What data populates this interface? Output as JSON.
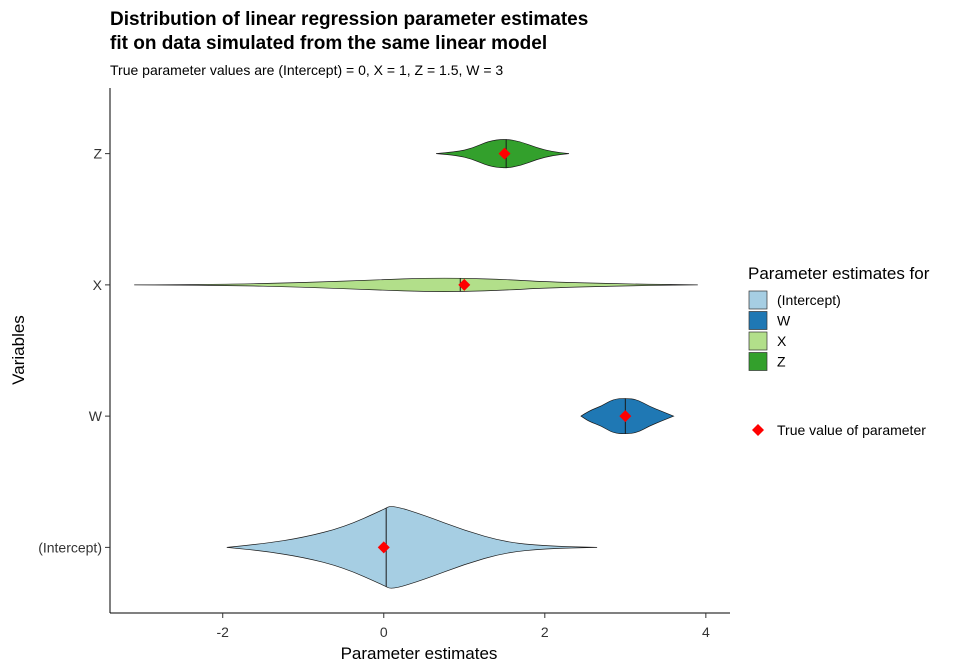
{
  "chart_data": {
    "type": "violin",
    "orientation": "horizontal",
    "title_line1": "Distribution of linear regression parameter estimates",
    "title_line2": "fit on data simulated from the same linear model",
    "subtitle": "True parameter values are (Intercept) = 0, X = 1, Z = 1.5, W = 3",
    "xlabel": "Parameter estimates",
    "ylabel": "Variables",
    "xlim": [
      -3.4,
      4.3
    ],
    "x_ticks": [
      -2,
      0,
      2,
      4
    ],
    "categories": [
      "(Intercept)",
      "W",
      "X",
      "Z"
    ],
    "legend": {
      "title": "Parameter estimates for",
      "position": "right",
      "entries": [
        {
          "label": "(Intercept)",
          "color": "#a6cee3"
        },
        {
          "label": "W",
          "color": "#1f78b4"
        },
        {
          "label": "X",
          "color": "#b2df8a"
        },
        {
          "label": "Z",
          "color": "#33a02c"
        }
      ],
      "marker_label": "True value of parameter",
      "marker_color": "#ff0000"
    },
    "series": [
      {
        "category": "(Intercept)",
        "color": "#a6cee3",
        "min": -1.95,
        "max": 2.65,
        "median": 0.03,
        "true_value": 0,
        "density": [
          [
            -1.95,
            0.0
          ],
          [
            -1.5,
            0.08
          ],
          [
            -1.0,
            0.22
          ],
          [
            -0.5,
            0.45
          ],
          [
            0.0,
            0.85
          ],
          [
            0.1,
            0.95
          ],
          [
            0.5,
            0.72
          ],
          [
            1.0,
            0.38
          ],
          [
            1.5,
            0.12
          ],
          [
            2.0,
            0.03
          ],
          [
            2.65,
            0.0
          ]
        ]
      },
      {
        "category": "W",
        "color": "#1f78b4",
        "min": 2.45,
        "max": 3.6,
        "median": 3.0,
        "true_value": 3,
        "density": [
          [
            2.45,
            0.0
          ],
          [
            2.55,
            0.12
          ],
          [
            2.7,
            0.22
          ],
          [
            2.85,
            0.38
          ],
          [
            3.0,
            0.4
          ],
          [
            3.15,
            0.37
          ],
          [
            3.3,
            0.22
          ],
          [
            3.45,
            0.11
          ],
          [
            3.6,
            0.0
          ]
        ]
      },
      {
        "category": "X",
        "color": "#b2df8a",
        "min": -3.1,
        "max": 3.9,
        "median": 0.95,
        "true_value": 1,
        "density": [
          [
            -3.1,
            0.0
          ],
          [
            -2.0,
            0.01
          ],
          [
            -1.0,
            0.05
          ],
          [
            0.0,
            0.12
          ],
          [
            0.5,
            0.15
          ],
          [
            1.0,
            0.15
          ],
          [
            1.5,
            0.12
          ],
          [
            2.0,
            0.07
          ],
          [
            3.0,
            0.02
          ],
          [
            3.9,
            0.0
          ]
        ]
      },
      {
        "category": "Z",
        "color": "#33a02c",
        "min": 0.65,
        "max": 2.3,
        "median": 1.52,
        "true_value": 1.5,
        "density": [
          [
            0.65,
            0.0
          ],
          [
            0.9,
            0.04
          ],
          [
            1.1,
            0.12
          ],
          [
            1.3,
            0.28
          ],
          [
            1.5,
            0.33
          ],
          [
            1.7,
            0.27
          ],
          [
            1.9,
            0.13
          ],
          [
            2.1,
            0.04
          ],
          [
            2.3,
            0.0
          ]
        ]
      }
    ]
  }
}
